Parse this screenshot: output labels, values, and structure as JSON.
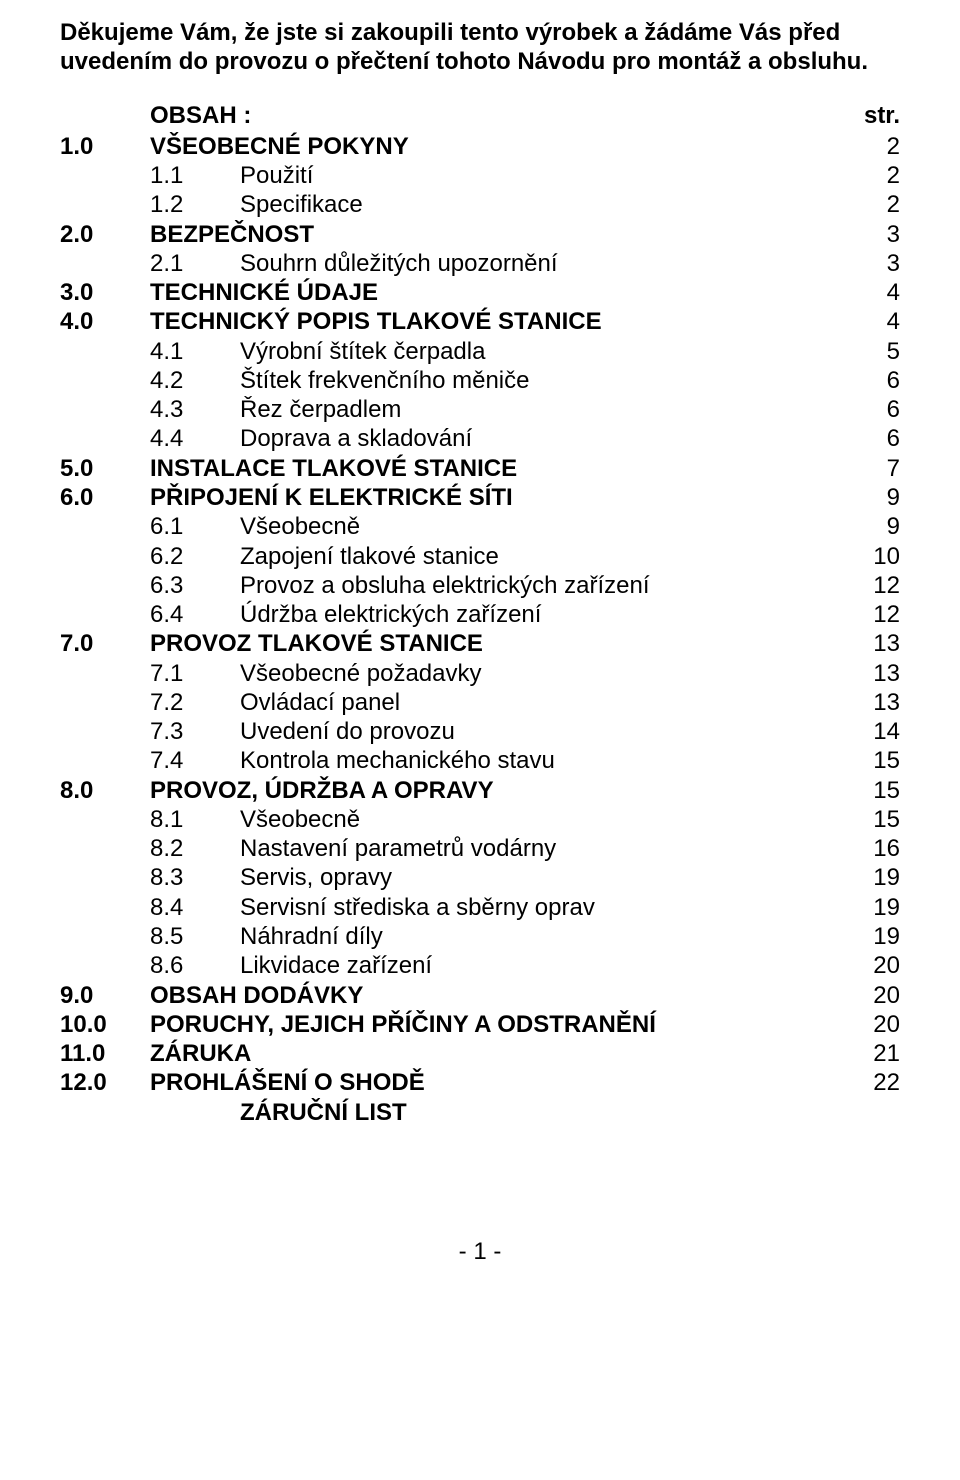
{
  "intro": "Děkujeme Vám, že jste si zakoupili tento výrobek a žádáme Vás před uvedením do provozu o přečtení tohoto Návodu pro montáž a obsluhu.",
  "obsah_label": "OBSAH :",
  "str_label": "str.",
  "footer": "- 1 -",
  "rows": [
    {
      "n": "1.0",
      "t": "VŠEOBECNÉ POKYNY",
      "p": "2",
      "b": true
    },
    {
      "n": "1.1",
      "t": "Použití",
      "p": "2",
      "sub": true
    },
    {
      "n": "1.2",
      "t": "Specifikace",
      "p": "2",
      "sub": true
    },
    {
      "n": "2.0",
      "t": "BEZPEČNOST",
      "p": "3",
      "b": true
    },
    {
      "n": "2.1",
      "t": "Souhrn důležitých upozornění",
      "p": "3",
      "sub": true
    },
    {
      "n": "3.0",
      "t": "TECHNICKÉ ÚDAJE",
      "p": "4",
      "b": true
    },
    {
      "n": "4.0",
      "t": "TECHNICKÝ POPIS TLAKOVÉ STANICE",
      "p": "4",
      "b": true
    },
    {
      "n": "4.1",
      "t": "Výrobní štítek čerpadla",
      "p": "5",
      "sub": true
    },
    {
      "n": "4.2",
      "t": "Štítek frekvenčního měniče",
      "p": "6",
      "sub": true
    },
    {
      "n": "4.3",
      "t": "Řez čerpadlem",
      "p": "6",
      "sub": true
    },
    {
      "n": "4.4",
      "t": "Doprava a skladování",
      "p": "6",
      "sub": true
    },
    {
      "n": "5.0",
      "t": "INSTALACE TLAKOVÉ STANICE",
      "p": "7",
      "b": true
    },
    {
      "n": "6.0",
      "t": "PŘIPOJENÍ K ELEKTRICKÉ SÍTI",
      "p": "9",
      "b": true
    },
    {
      "n": "6.1",
      "t": "Všeobecně",
      "p": "9",
      "sub": true
    },
    {
      "n": "6.2",
      "t": "Zapojení tlakové stanice",
      "p": "10",
      "sub": true
    },
    {
      "n": "6.3",
      "t": "Provoz a obsluha elektrických zařízení",
      "p": "12",
      "sub": true
    },
    {
      "n": "6.4",
      "t": "Údržba elektrických zařízení",
      "p": "12",
      "sub": true
    },
    {
      "n": "7.0",
      "t": "PROVOZ TLAKOVÉ STANICE",
      "p": "13",
      "b": true
    },
    {
      "n": "7.1",
      "t": "Všeobecné požadavky",
      "p": "13",
      "sub": true
    },
    {
      "n": "7.2",
      "t": "Ovládací panel",
      "p": "13",
      "sub": true
    },
    {
      "n": "7.3",
      "t": "Uvedení do provozu",
      "p": "14",
      "sub": true
    },
    {
      "n": "7.4",
      "t": "Kontrola mechanického stavu",
      "p": "15",
      "sub": true
    },
    {
      "n": "8.0",
      "t": "PROVOZ, ÚDRŽBA A OPRAVY",
      "p": "15",
      "b": true
    },
    {
      "n": "8.1",
      "t": "Všeobecně",
      "p": "15",
      "sub": true
    },
    {
      "n": "8.2",
      "t": "Nastavení parametrů vodárny",
      "p": "16",
      "sub": true
    },
    {
      "n": "8.3",
      "t": "Servis, opravy",
      "p": "19",
      "sub": true
    },
    {
      "n": "8.4",
      "t": "Servisní střediska a sběrny oprav",
      "p": "19",
      "sub": true
    },
    {
      "n": "8.5",
      "t": "Náhradní díly",
      "p": "19",
      "sub": true
    },
    {
      "n": "8.6",
      "t": "Likvidace zařízení",
      "p": "20",
      "sub": true
    },
    {
      "n": "9.0",
      "t": "OBSAH DODÁVKY",
      "p": "20",
      "b": true
    },
    {
      "n": "10.0",
      "t": "PORUCHY, JEJICH PŘÍČINY A ODSTRANĚNÍ",
      "p": "20",
      "b": true
    },
    {
      "n": "11.0",
      "t": "ZÁRUKA",
      "p": "21",
      "b": true
    },
    {
      "n": "12.0",
      "t": "PROHLÁŠENÍ O SHODĚ",
      "p": "22",
      "b": true
    },
    {
      "n": "",
      "t": "ZÁRUČNÍ LIST",
      "p": "",
      "b": true,
      "sub": false,
      "indent": true
    }
  ]
}
